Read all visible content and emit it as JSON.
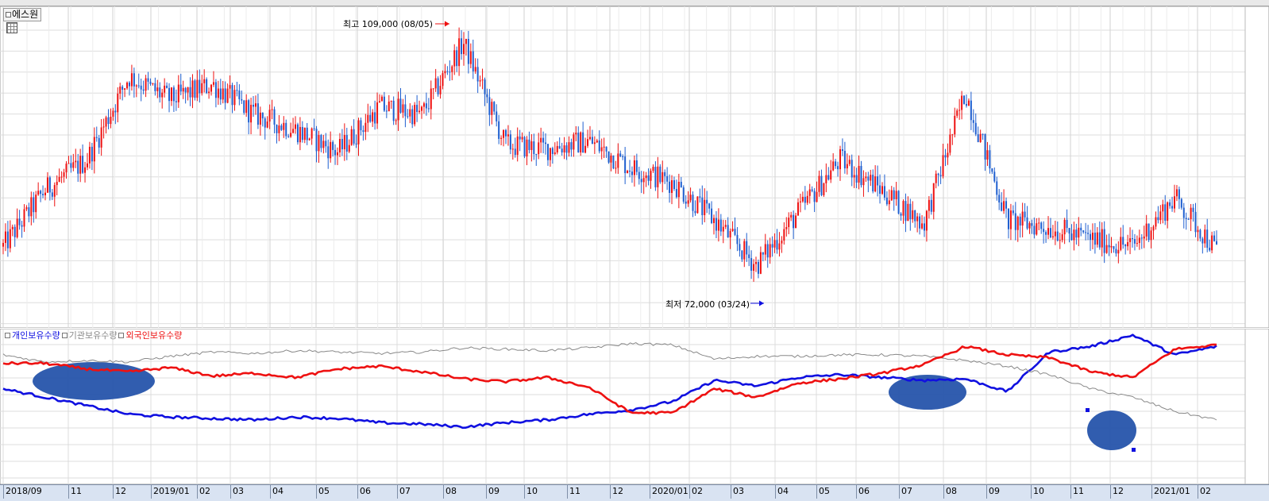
{
  "stock": {
    "name": "에스원"
  },
  "legend": [
    {
      "label": "개인보유수량",
      "color": "#1010e0"
    },
    {
      "label": "기관보유수량",
      "color": "#888888"
    },
    {
      "label": "외국인보유수량",
      "color": "#ee1111"
    }
  ],
  "annotations": {
    "high": {
      "text": "최고 109,000 (08/05)",
      "color": "#ee1111"
    },
    "low": {
      "text": "최저 72,000 (03/24)",
      "color": "#1010e0"
    }
  },
  "x_axis_ticks": [
    "2018/09",
    "11",
    "12",
    "2019/01",
    "02",
    "03",
    "04",
    "05",
    "06",
    "07",
    "08",
    "09",
    "10",
    "11",
    "12",
    "2020/01",
    "02",
    "03",
    "04",
    "05",
    "06",
    "07",
    "08",
    "09",
    "10",
    "11",
    "12",
    "2021/01",
    "02"
  ],
  "chart_data": {
    "type": "line",
    "price_chart": {
      "style": "candlestick",
      "up_color": "#ee1111",
      "down_color": "#1f5fd0",
      "high": 109000,
      "low": 72000,
      "x": [
        "2018/09",
        "2018/10",
        "2018/11",
        "2018/12",
        "2019/01",
        "2019/02",
        "2019/03",
        "2019/04",
        "2019/05",
        "2019/06",
        "2019/07",
        "2019/08",
        "2019/09",
        "2019/10",
        "2019/11",
        "2019/12",
        "2020/01",
        "2020/02",
        "2020/03",
        "2020/04",
        "2020/05",
        "2020/06",
        "2020/07",
        "2020/08",
        "2020/09",
        "2020/10",
        "2020/11",
        "2020/12",
        "2021/01",
        "2021/02"
      ],
      "close": [
        79500,
        87000,
        91000,
        102000,
        99000,
        101000,
        97000,
        95000,
        92000,
        98000,
        97000,
        106500,
        93000,
        92500,
        93500,
        90000,
        88000,
        83000,
        77000,
        84000,
        91000,
        87000,
        82500,
        100000,
        83000,
        82000,
        80500,
        79500,
        86000,
        79000
      ]
    },
    "holdings_chart": {
      "series": [
        {
          "name": "개인보유수량",
          "color": "#1010e0",
          "values": [
            0.62,
            0.56,
            0.5,
            0.44,
            0.42,
            0.41,
            0.4,
            0.42,
            0.41,
            0.38,
            0.37,
            0.35,
            0.38,
            0.4,
            0.44,
            0.47,
            0.53,
            0.68,
            0.64,
            0.7,
            0.72,
            0.7,
            0.68,
            0.69,
            0.6,
            0.88,
            0.92,
            1.0,
            0.86,
            0.92
          ]
        },
        {
          "name": "기관보유수량",
          "color": "#888888",
          "values": [
            0.86,
            0.81,
            0.82,
            0.81,
            0.85,
            0.88,
            0.87,
            0.89,
            0.88,
            0.87,
            0.88,
            0.91,
            0.9,
            0.89,
            0.91,
            0.94,
            0.93,
            0.83,
            0.85,
            0.85,
            0.86,
            0.86,
            0.85,
            0.82,
            0.78,
            0.72,
            0.62,
            0.56,
            0.46,
            0.4
          ]
        },
        {
          "name": "외국인보유수량",
          "color": "#ee1111",
          "values": [
            0.8,
            0.8,
            0.76,
            0.74,
            0.77,
            0.71,
            0.73,
            0.7,
            0.76,
            0.78,
            0.74,
            0.69,
            0.67,
            0.7,
            0.63,
            0.45,
            0.45,
            0.62,
            0.56,
            0.66,
            0.69,
            0.73,
            0.79,
            0.92,
            0.86,
            0.84,
            0.74,
            0.7,
            0.9,
            0.93
          ]
        }
      ]
    }
  }
}
